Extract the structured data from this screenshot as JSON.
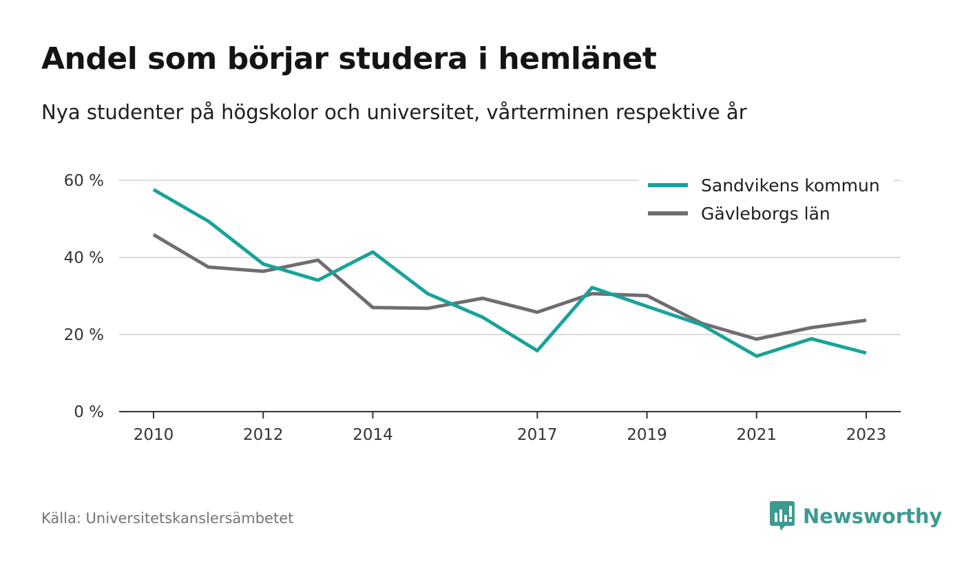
{
  "header": {
    "title": "Andel som börjar studera i hemlänet",
    "subtitle": "Nya studenter på högskolor och universitet, vårterminen respektive år"
  },
  "footer": {
    "source": "Källa: Universitetskanslersämbetet",
    "brand": "Newsworthy",
    "brand_color": "#3d9a92"
  },
  "chart_data": {
    "type": "line",
    "x": [
      2010,
      2011,
      2012,
      2013,
      2014,
      2015,
      2016,
      2017,
      2018,
      2019,
      2020,
      2021,
      2022,
      2023
    ],
    "x_tick_labels": [
      "2010",
      "2012",
      "2014",
      "2017",
      "2019",
      "2021",
      "2023"
    ],
    "y_ticks": [
      0,
      20,
      40,
      60
    ],
    "y_tick_labels": [
      "0 %",
      "20 %",
      "40 %",
      "60 %"
    ],
    "ylim": [
      0,
      60
    ],
    "grid": true,
    "legend_position": "top-right",
    "series": [
      {
        "name": "Sandvikens kommun",
        "color": "#18a39a",
        "values": [
          57.6,
          49.4,
          38.3,
          34.1,
          41.4,
          30.6,
          24.5,
          15.8,
          32.2,
          27.3,
          22.5,
          14.4,
          18.9,
          15.2
        ]
      },
      {
        "name": "Gävleborgs län",
        "color": "#6f6d72",
        "values": [
          45.9,
          37.5,
          36.4,
          39.3,
          27.0,
          26.8,
          29.4,
          25.8,
          30.6,
          30.1,
          22.9,
          18.8,
          21.8,
          23.7
        ]
      }
    ]
  }
}
